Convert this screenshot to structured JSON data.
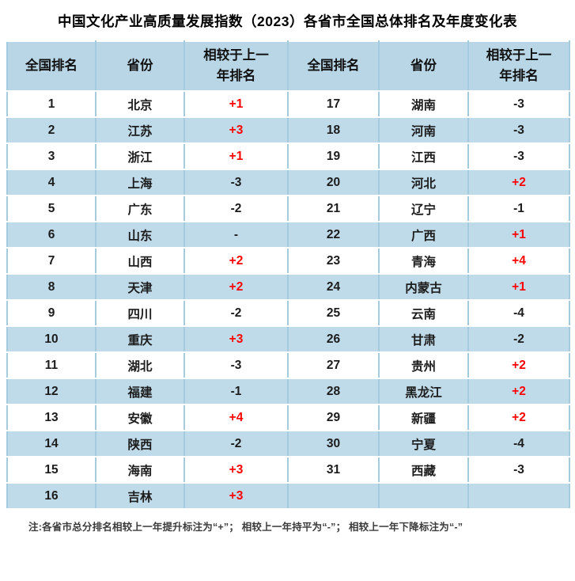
{
  "title": "中国文化产业高质量发展指数（2023）各省市全国总体排名及年度变化表",
  "note": "注:各省市总分排名相较上一年提升标注为“+”； 相较上一年持平为“-”； 相较上一年下降标注为“-”",
  "colors": {
    "header_bg": "#b9d6e6",
    "row_alt_bg": "#bfdae8",
    "divider_blue": "#a5cbde",
    "positive_red": "#fe0000",
    "text_dark": "#1c1c1c"
  },
  "chart_data": {
    "type": "table",
    "title": "中国文化产业高质量发展指数（2023）各省市全国总体排名及年度变化表",
    "columns": [
      "全国排名",
      "省份",
      "相较于上一\n年排名",
      "全国排名",
      "省份",
      "相较于上一\n年排名"
    ],
    "rows": [
      [
        "1",
        "北京",
        "+1",
        "17",
        "湖南",
        "-3"
      ],
      [
        "2",
        "江苏",
        "+3",
        "18",
        "河南",
        "-3"
      ],
      [
        "3",
        "浙江",
        "+1",
        "19",
        "江西",
        "-3"
      ],
      [
        "4",
        "上海",
        "-3",
        "20",
        "河北",
        "+2"
      ],
      [
        "5",
        "广东",
        "-2",
        "21",
        "辽宁",
        "-1"
      ],
      [
        "6",
        "山东",
        "-",
        "22",
        "广西",
        "+1"
      ],
      [
        "7",
        "山西",
        "+2",
        "23",
        "青海",
        "+4"
      ],
      [
        "8",
        "天津",
        "+2",
        "24",
        "内蒙古",
        "+1"
      ],
      [
        "9",
        "四川",
        "-2",
        "25",
        "云南",
        "-4"
      ],
      [
        "10",
        "重庆",
        "+3",
        "26",
        "甘肃",
        "-2"
      ],
      [
        "11",
        "湖北",
        "-3",
        "27",
        "贵州",
        "+2"
      ],
      [
        "12",
        "福建",
        "-1",
        "28",
        "黑龙江",
        "+2"
      ],
      [
        "13",
        "安徽",
        "+4",
        "29",
        "新疆",
        "+2"
      ],
      [
        "14",
        "陕西",
        "-2",
        "30",
        "宁夏",
        "-4"
      ],
      [
        "15",
        "海南",
        "+3",
        "31",
        "西藏",
        "-3"
      ],
      [
        "16",
        "吉林",
        "+3",
        "",
        "",
        ""
      ]
    ],
    "note": "注:各省市总分排名相较上一年提升标注为“+”； 相较上一年持平为“-”； 相较上一年下降标注为“-”"
  }
}
